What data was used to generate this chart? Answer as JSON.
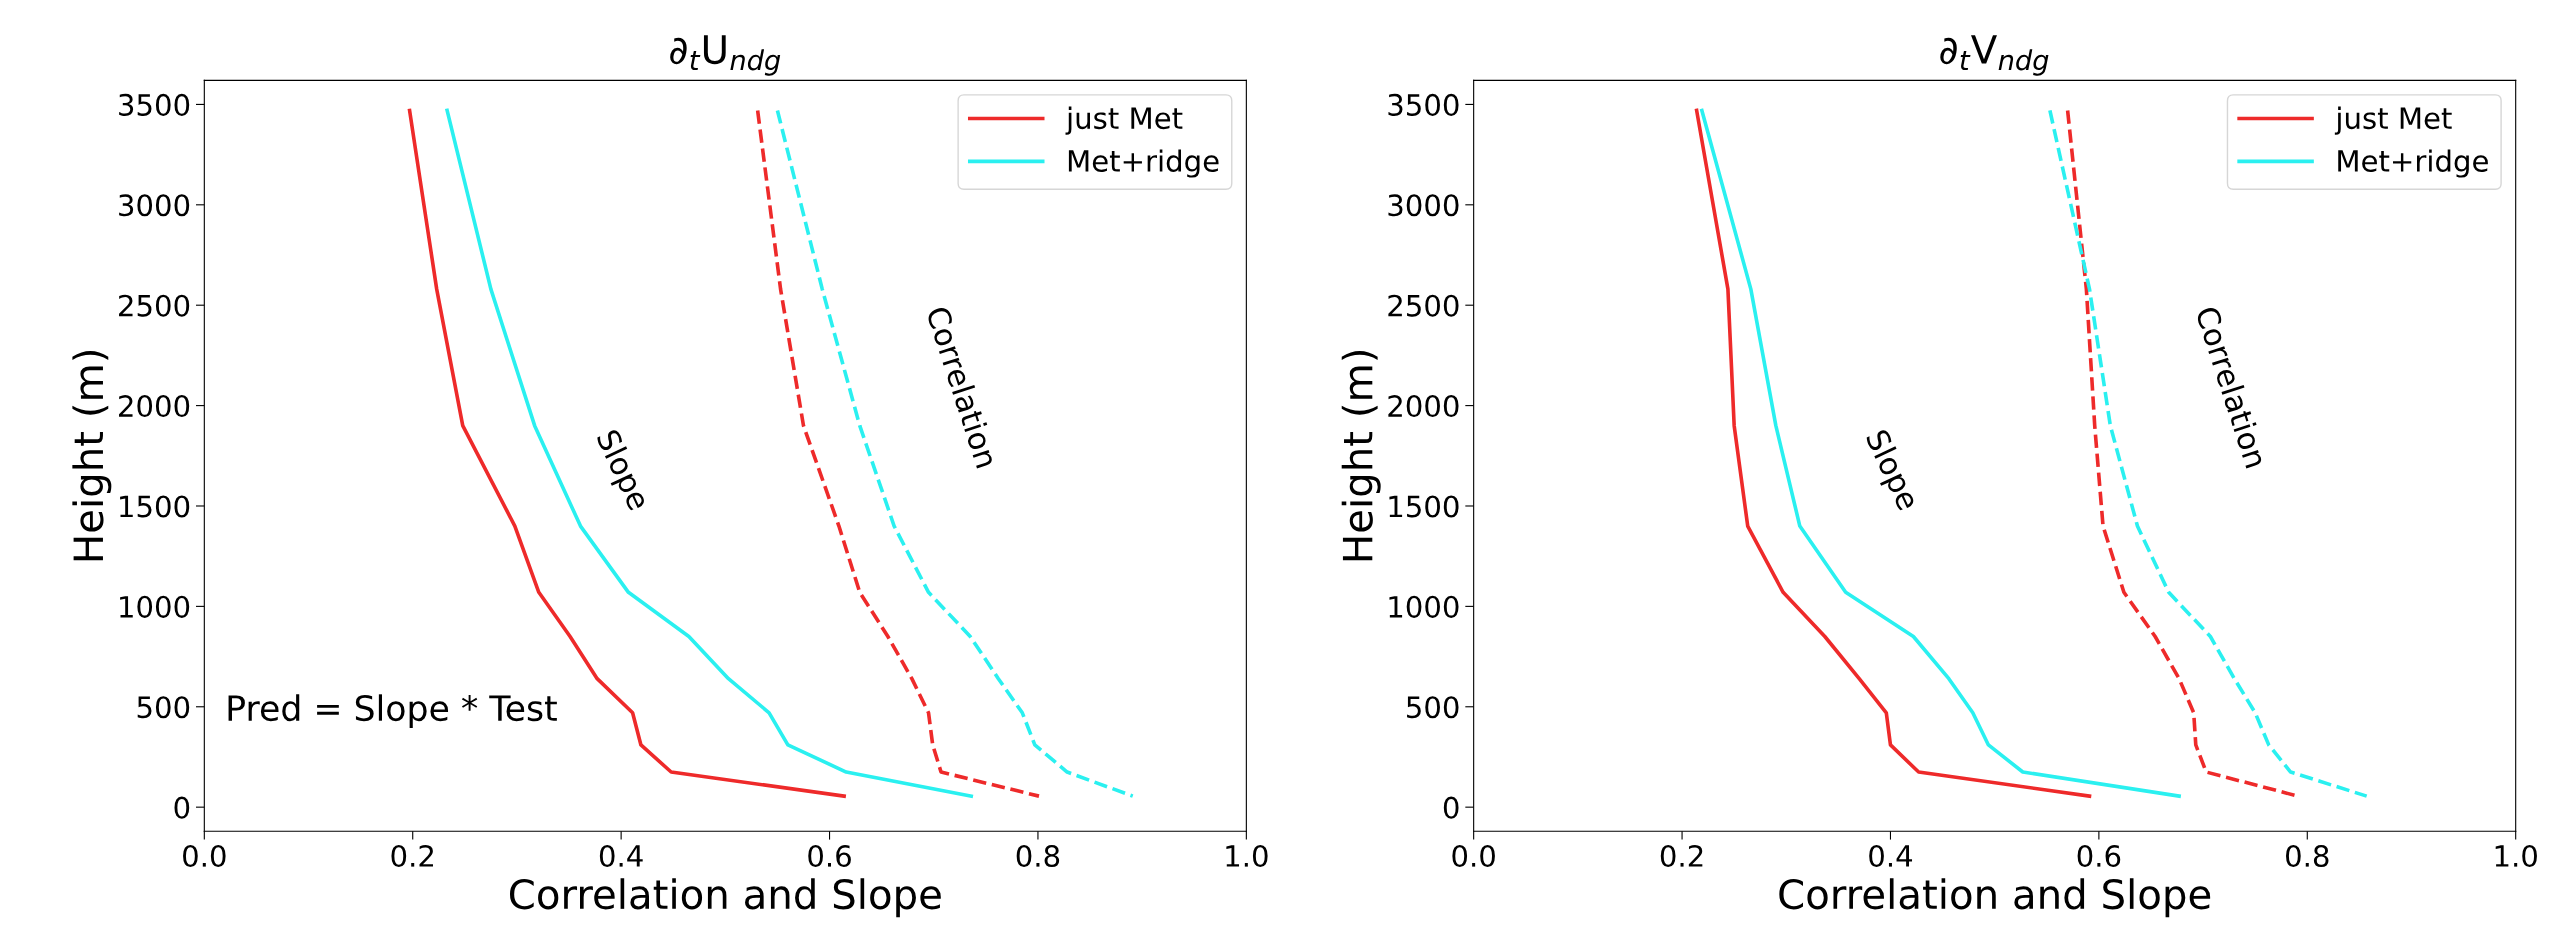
{
  "chart_data": [
    {
      "type": "line",
      "title": "∂$_{t}$U$_{ndg}$",
      "xlabel": "Correlation and Slope",
      "ylabel": "Height (m)",
      "xlim": [
        0,
        1
      ],
      "xticks": [
        {
          "value": 0,
          "label": "0.0"
        },
        {
          "value": 0.2,
          "label": "0.2"
        },
        {
          "value": 0.4,
          "label": "0.4"
        },
        {
          "value": 0.6,
          "label": "0.6"
        },
        {
          "value": 0.8,
          "label": "0.8"
        },
        {
          "value": 1,
          "label": "1.0"
        }
      ],
      "ylim": [
        -120,
        3620
      ],
      "yticks": [
        0,
        500,
        1000,
        1500,
        2000,
        2500,
        3000,
        3500
      ],
      "grid": false,
      "legend": "top right",
      "series": [
        {
          "name": "just Met",
          "color": "#ee2a2a",
          "line_style": "solid",
          "x": [
            0.197,
            0.223,
            0.248,
            0.298,
            0.321,
            0.351,
            0.377,
            0.411,
            0.419,
            0.448,
            0.614
          ],
          "values": [
            3470,
            2580,
            1900,
            1400,
            1070,
            850,
            640,
            470,
            310,
            175,
            55
          ]
        },
        {
          "name": "Met+ridge",
          "color": "#2af0f0",
          "line_style": "solid",
          "x": [
            0.233,
            0.275,
            0.317,
            0.361,
            0.407,
            0.465,
            0.503,
            0.542,
            0.56,
            0.616,
            0.736
          ],
          "values": [
            3470,
            2580,
            1900,
            1400,
            1070,
            850,
            640,
            470,
            310,
            175,
            55
          ]
        },
        {
          "color": "#ee2a2a",
          "line_style": "dashed",
          "x": [
            0.531,
            0.553,
            0.575,
            0.609,
            0.629,
            0.656,
            0.679,
            0.695,
            0.699,
            0.707,
            0.801
          ],
          "values": [
            3470,
            2580,
            1900,
            1400,
            1070,
            850,
            640,
            470,
            310,
            175,
            55
          ]
        },
        {
          "color": "#2af0f0",
          "line_style": "dashed",
          "x": [
            0.55,
            0.593,
            0.629,
            0.662,
            0.695,
            0.735,
            0.762,
            0.785,
            0.797,
            0.828,
            0.891
          ],
          "values": [
            3470,
            2580,
            1900,
            1400,
            1070,
            850,
            640,
            470,
            310,
            175,
            55
          ]
        }
      ],
      "annotations": [
        "Slope",
        "Correlation",
        "Pred = Slope * Test"
      ]
    },
    {
      "type": "line",
      "title": "∂$_{t}$V$_{ndg}$",
      "xlabel": "Correlation and Slope",
      "ylabel": "Height (m)",
      "xlim": [
        0,
        1
      ],
      "xticks": [
        {
          "value": 0,
          "label": "0.0"
        },
        {
          "value": 0.2,
          "label": "0.2"
        },
        {
          "value": 0.4,
          "label": "0.4"
        },
        {
          "value": 0.6,
          "label": "0.6"
        },
        {
          "value": 0.8,
          "label": "0.8"
        },
        {
          "value": 1,
          "label": "1.0"
        }
      ],
      "ylim": [
        -120,
        3620
      ],
      "yticks": [
        0,
        500,
        1000,
        1500,
        2000,
        2500,
        3000,
        3500
      ],
      "grid": false,
      "legend": "top right",
      "series": [
        {
          "name": "just Met",
          "color": "#ee2a2a",
          "line_style": "solid",
          "x": [
            0.214,
            0.244,
            0.25,
            0.263,
            0.297,
            0.337,
            0.37,
            0.396,
            0.4,
            0.427,
            0.591
          ],
          "values": [
            3470,
            2580,
            1900,
            1400,
            1070,
            850,
            640,
            470,
            310,
            175,
            55
          ]
        },
        {
          "name": "Met+ridge",
          "color": "#2af0f0",
          "line_style": "solid",
          "x": [
            0.219,
            0.266,
            0.29,
            0.313,
            0.357,
            0.422,
            0.456,
            0.479,
            0.494,
            0.527,
            0.677
          ],
          "values": [
            3470,
            2580,
            1900,
            1400,
            1070,
            850,
            640,
            470,
            310,
            175,
            55
          ]
        },
        {
          "color": "#ee2a2a",
          "line_style": "dashed",
          "x": [
            0.57,
            0.588,
            0.596,
            0.604,
            0.624,
            0.654,
            0.677,
            0.691,
            0.693,
            0.703,
            0.791
          ],
          "values": [
            3470,
            2580,
            1900,
            1400,
            1070,
            850,
            640,
            470,
            310,
            175,
            55
          ]
        },
        {
          "color": "#2af0f0",
          "line_style": "dashed",
          "x": [
            0.553,
            0.591,
            0.611,
            0.637,
            0.667,
            0.707,
            0.73,
            0.75,
            0.763,
            0.784,
            0.857
          ],
          "values": [
            3470,
            2580,
            1900,
            1400,
            1070,
            850,
            640,
            470,
            310,
            175,
            55
          ]
        }
      ],
      "annotations": [
        "Slope",
        "Correlation"
      ]
    }
  ]
}
